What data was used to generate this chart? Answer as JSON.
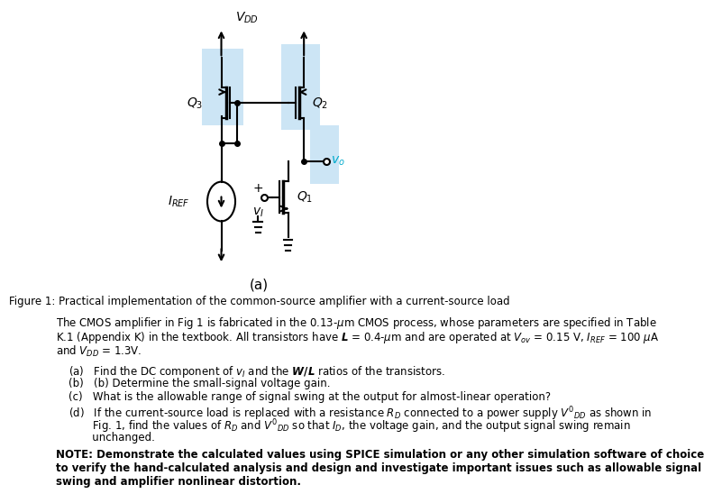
{
  "fig_width": 7.0,
  "fig_height": 5.41,
  "bg_color": "#ffffff",
  "circuit_title": "(a)",
  "figure_caption": "Figure 1: Practical implementation of the common-source amplifier with a current-source load",
  "body_text": "The CMOS amplifier in Fig 1 is fabricated in the 0.13-μm CMOS process, whose parameters are specified in Table\nK.1 (Appendix K) in the textbook. All transistors have $\\boldsymbol{L}$ = 0.4-μm and are operated at $V_{ov}$ = 0.15 V, $I_{REF}$ = 100 μA\nand $V_{DD}$ = 1.3V.",
  "items": [
    "(a)  Find the DC component of $v_I$ and the $\\boldsymbol{W/L}$ ratios of the transistors.",
    "(b)  (b) Determine the small-signal voltage gain.",
    "(c)  What is the allowable range of signal swing at the output for almost-linear operation?",
    "(d)  If the current-source load is replaced with a resistance $R_D$ connected to a power supply $V'_{DD}$ as shown in\n       Fig. 1, find the values of $R_D$ and $V'_{DD}$ so that $I_D$, the voltage gain, and the output signal swing remain\n       unchanged."
  ],
  "note_text": "NOTE: Demonstrate the calculated values using SPICE simulation or any other simulation software of choice\nto verify the hand-calculated analysis and design and investigate important issues such as allowable signal\nswing and amplifier nonlinear distortion.",
  "light_blue": "#cce5f5",
  "cyan_label": "#00aacc"
}
